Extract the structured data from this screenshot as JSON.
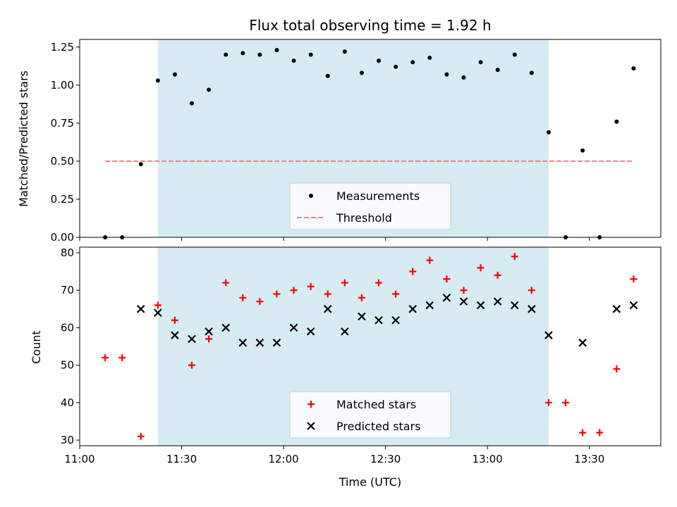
{
  "chart_data": {
    "type": "scatter",
    "title": "Flux total observing time = 1.92 h",
    "xlabel": "Time (UTC)",
    "x_tick_labels": [
      "11:00",
      "11:30",
      "12:00",
      "12:30",
      "13:00",
      "13:30"
    ],
    "x_range_minutes_after_11_00": [
      0,
      171
    ],
    "observing_window": [
      "11:23",
      "13:18"
    ],
    "window_color": "#add8e6",
    "top_panel": {
      "ylabel": "Matched/Predicted stars",
      "ylim": [
        0,
        1.3
      ],
      "y_ticks": [
        "0.00",
        "0.25",
        "0.50",
        "0.75",
        "1.00",
        "1.25"
      ],
      "legend_position": "lower-center",
      "series": [
        {
          "name": "Measurements",
          "marker": "dot",
          "color": "#000000",
          "x": [
            "11:07.5",
            "11:12.5",
            "11:18",
            "11:23",
            "11:28",
            "11:33",
            "11:38",
            "11:43",
            "11:48",
            "11:53",
            "11:58",
            "12:03",
            "12:08",
            "12:13",
            "12:18",
            "12:23",
            "12:28",
            "12:33",
            "12:38",
            "12:43",
            "12:48",
            "12:53",
            "12:58",
            "13:03",
            "13:08",
            "13:13",
            "13:18",
            "13:23",
            "13:28",
            "13:33",
            "13:38",
            "13:43"
          ],
          "y": [
            0.0,
            0.0,
            0.48,
            1.03,
            1.07,
            0.88,
            0.97,
            1.2,
            1.21,
            1.2,
            1.23,
            1.16,
            1.2,
            1.06,
            1.22,
            1.08,
            1.16,
            1.12,
            1.15,
            1.18,
            1.07,
            1.05,
            1.15,
            1.1,
            1.2,
            1.08,
            0.69,
            0.0,
            0.57,
            0.0,
            0.76,
            1.11
          ]
        },
        {
          "name": "Threshold",
          "style": "dashed",
          "color": "#f08080",
          "x": [
            "11:07.5",
            "13:43"
          ],
          "y": [
            0.5,
            0.5
          ]
        }
      ]
    },
    "bottom_panel": {
      "ylabel": "Count",
      "ylim": [
        28.5,
        81.5
      ],
      "y_ticks": [
        "30",
        "40",
        "50",
        "60",
        "70",
        "80"
      ],
      "legend_position": "lower-center",
      "series": [
        {
          "name": "Matched stars",
          "marker": "plus",
          "color": "#ff0000",
          "x": [
            "11:07.5",
            "11:12.5",
            "11:18",
            "11:23",
            "11:28",
            "11:33",
            "11:38",
            "11:43",
            "11:48",
            "11:53",
            "11:58",
            "12:03",
            "12:08",
            "12:13",
            "12:18",
            "12:23",
            "12:28",
            "12:33",
            "12:38",
            "12:43",
            "12:48",
            "12:53",
            "12:58",
            "13:03",
            "13:08",
            "13:13",
            "13:18",
            "13:23",
            "13:28",
            "13:33",
            "13:38",
            "13:43"
          ],
          "y": [
            52,
            52,
            31,
            66,
            62,
            50,
            57,
            72,
            68,
            67,
            69,
            70,
            71,
            69,
            72,
            68,
            72,
            69,
            75,
            78,
            73,
            70,
            76,
            74,
            79,
            70,
            40,
            40,
            32,
            32,
            49,
            73
          ]
        },
        {
          "name": "Predicted stars",
          "marker": "x",
          "color": "#000000",
          "x": [
            "11:18",
            "11:23",
            "11:28",
            "11:33",
            "11:38",
            "11:43",
            "11:48",
            "11:53",
            "11:58",
            "12:03",
            "12:08",
            "12:13",
            "12:18",
            "12:23",
            "12:28",
            "12:33",
            "12:38",
            "12:43",
            "12:48",
            "12:53",
            "12:58",
            "13:03",
            "13:08",
            "13:13",
            "13:18",
            "13:28",
            "13:38",
            "13:43"
          ],
          "y": [
            65,
            64,
            58,
            57,
            59,
            60,
            56,
            56,
            56,
            60,
            59,
            65,
            59,
            63,
            62,
            62,
            65,
            66,
            68,
            67,
            66,
            67,
            66,
            65,
            58,
            56,
            65,
            66
          ]
        }
      ]
    }
  }
}
